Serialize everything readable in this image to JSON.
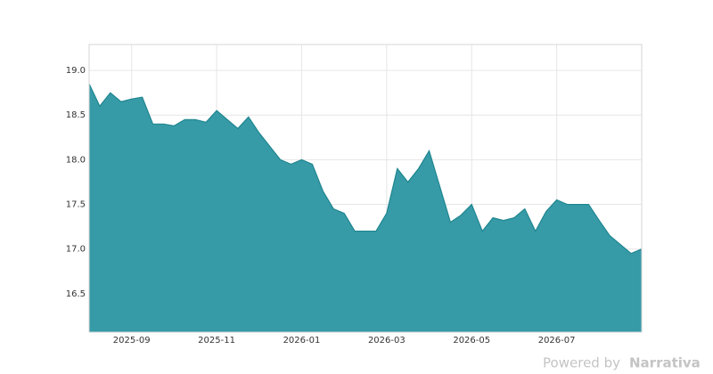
{
  "chart_data": {
    "type": "area",
    "categories": [
      null,
      null,
      null,
      null,
      "2025-09",
      null,
      null,
      null,
      null,
      null,
      null,
      null,
      "2025-11",
      null,
      null,
      null,
      null,
      null,
      null,
      null,
      "2026-01",
      null,
      null,
      null,
      null,
      null,
      null,
      null,
      "2026-03",
      null,
      null,
      null,
      null,
      null,
      null,
      null,
      "2026-05",
      null,
      null,
      null,
      null,
      null,
      null,
      null,
      "2026-07",
      null,
      null,
      null,
      null,
      null,
      null,
      null,
      null
    ],
    "values": [
      18.85,
      18.6,
      18.75,
      18.65,
      18.68,
      18.7,
      18.4,
      18.4,
      18.38,
      18.45,
      18.45,
      18.42,
      18.55,
      18.45,
      18.35,
      18.48,
      18.3,
      18.15,
      18.0,
      17.95,
      18.0,
      17.95,
      17.65,
      17.45,
      17.4,
      17.2,
      17.2,
      17.2,
      17.4,
      17.9,
      17.75,
      17.9,
      18.1,
      17.7,
      17.3,
      17.38,
      17.5,
      17.2,
      17.35,
      17.32,
      17.35,
      17.45,
      17.2,
      17.42,
      17.55,
      17.5,
      17.5,
      17.5,
      17.32,
      17.15,
      17.05,
      16.95,
      17.0
    ],
    "color": "#2f98a4",
    "ylim": [
      16.07,
      19.29
    ],
    "yticks": [
      16.5,
      {
        "value": 17,
        "label": "17.0"
      },
      17.5,
      {
        "value": 18,
        "label": "18.0"
      },
      18.5,
      {
        "value": 19,
        "label": "19.0"
      }
    ],
    "grid": true
  },
  "footer": {
    "prefix": "Powered by",
    "brand": "Narrativa"
  }
}
